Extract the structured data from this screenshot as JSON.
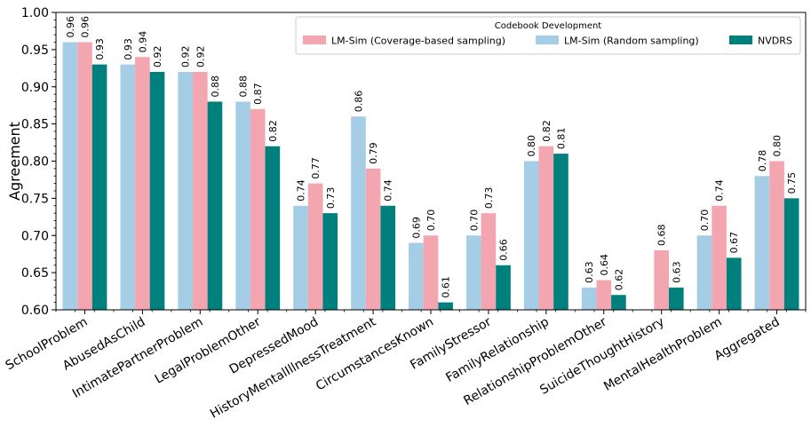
{
  "chart_data": {
    "type": "bar",
    "title": "",
    "xlabel": "",
    "ylabel": "Agreement",
    "ylim": [
      0.6,
      1.0
    ],
    "yticks": [
      "0.60",
      "0.65",
      "0.70",
      "0.75",
      "0.80",
      "0.85",
      "0.90",
      "0.95",
      "1.00"
    ],
    "grid": false,
    "legend": {
      "title": "Codebook Development",
      "position": "top-right",
      "columns": 3
    },
    "categories": [
      "SchoolProblem",
      "AbusedAsChild",
      "IntimatePartnerProblem",
      "LegalProblemOther",
      "DepressedMood",
      "HistoryMentalIllnessTreatment",
      "CircumstancesKnown",
      "FamilyStressor",
      "FamilyRelationship",
      "RelationshipProblemOther",
      "SuicideThoughtHistory",
      "MentalHealthProblem",
      "Aggregated"
    ],
    "series": [
      {
        "name": "LM-Sim (Random sampling)",
        "color": "#a6cde6",
        "values": [
          0.96,
          0.93,
          0.92,
          0.88,
          0.74,
          0.86,
          0.69,
          0.7,
          0.8,
          0.63,
          null,
          0.7,
          0.78
        ],
        "labels": [
          "0.96",
          "0.93",
          "0.92",
          "0.88",
          "0.74",
          "0.86",
          "0.69",
          "0.70",
          "0.80",
          "0.63",
          "",
          "0.70",
          "0.78"
        ]
      },
      {
        "name": "LM-Sim (Coverage-based sampling)",
        "color": "#f4a6b0",
        "values": [
          0.96,
          0.94,
          0.92,
          0.87,
          0.77,
          0.79,
          0.7,
          0.73,
          0.82,
          0.64,
          0.68,
          0.74,
          0.8
        ],
        "labels": [
          "0.96",
          "0.94",
          "0.92",
          "0.87",
          "0.77",
          "0.79",
          "0.70",
          "0.73",
          "0.82",
          "0.64",
          "0.68",
          "0.74",
          "0.80"
        ]
      },
      {
        "name": "NVDRS",
        "color": "#00807c",
        "values": [
          0.93,
          0.92,
          0.88,
          0.82,
          0.73,
          0.74,
          0.61,
          0.66,
          0.81,
          0.62,
          0.63,
          0.67,
          0.75
        ],
        "labels": [
          "0.93",
          "0.92",
          "0.88",
          "0.82",
          "0.73",
          "0.74",
          "0.61",
          "0.66",
          "0.81",
          "0.62",
          "0.63",
          "0.67",
          "0.75"
        ]
      }
    ],
    "legend_order": [
      "LM-Sim (Coverage-based sampling)",
      "LM-Sim (Random sampling)",
      "NVDRS"
    ]
  }
}
